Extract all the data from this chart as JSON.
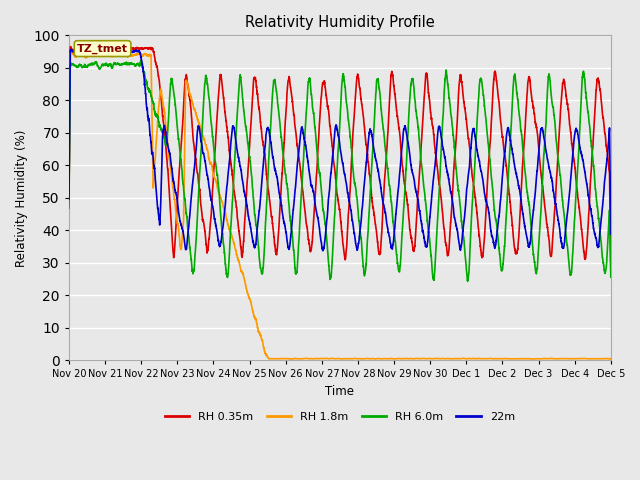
{
  "title": "Relativity Humidity Profile",
  "xlabel": "Time",
  "ylabel": "Relativity Humidity (%)",
  "ylim": [
    0,
    100
  ],
  "yticks": [
    0,
    10,
    20,
    30,
    40,
    50,
    60,
    70,
    80,
    90,
    100
  ],
  "colors": {
    "RH 0.35m": "#dd0000",
    "RH 1.8m": "#ff9900",
    "RH 6.0m": "#00aa00",
    "22m": "#0000cc"
  },
  "legend_labels": [
    "RH 0.35m",
    "RH 1.8m",
    "RH 6.0m",
    "22m"
  ],
  "tz_label": "TZ_tmet",
  "bg_color": "#e8e8e8",
  "plot_bg_color": "#e8e8e8",
  "grid_color": "#ffffff",
  "annotation_box_facecolor": "#ffffcc",
  "annotation_box_edgecolor": "#999900",
  "annotation_text_color": "#880000",
  "x_tick_labels": [
    "Nov 20",
    "Nov 21",
    "Nov 22",
    "Nov 23",
    "Nov 24",
    "Nov 25",
    "Nov 26",
    "Nov 27",
    "Nov 28",
    "Nov 29",
    "Nov 30",
    "Dec 1",
    "Dec 2",
    "Dec 3",
    "Dec 4",
    "Dec 5"
  ],
  "line_width": 1.2,
  "figsize": [
    6.4,
    4.8
  ],
  "dpi": 100
}
